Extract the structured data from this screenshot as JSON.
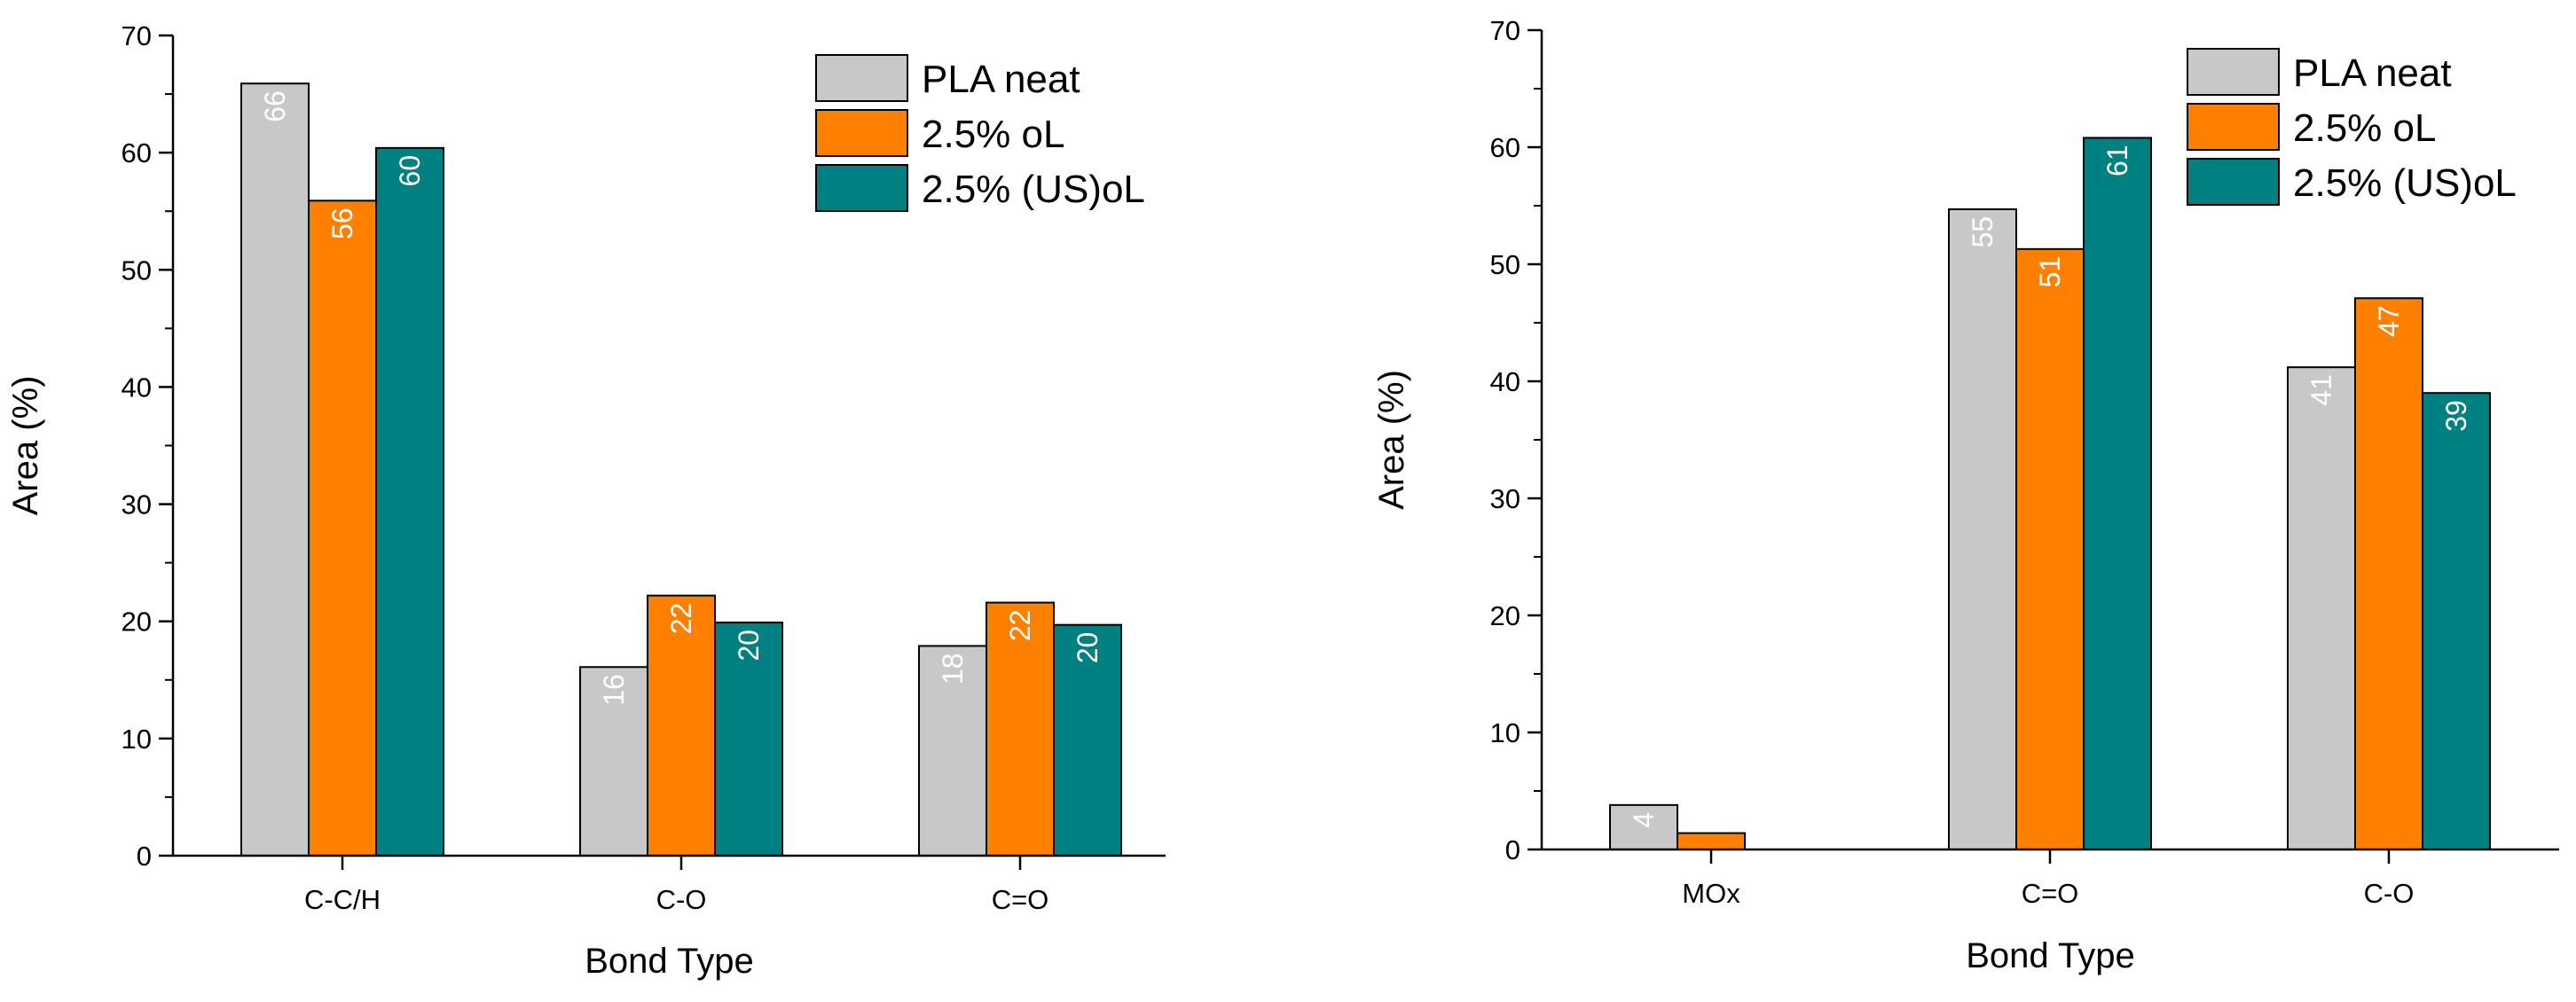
{
  "chart_data": [
    {
      "type": "bar",
      "categories": [
        "C-C/H",
        "C-O",
        "C=O"
      ],
      "series": [
        {
          "name": "PLA neat",
          "color": "#c8c8c8",
          "values": [
            65.9,
            16.1,
            17.9
          ]
        },
        {
          "name": "2.5% oL",
          "color": "#ff8000",
          "values": [
            55.9,
            22.2,
            21.6
          ]
        },
        {
          "name": "2.5% (US)oL",
          "color": "#008080",
          "values": [
            60.4,
            19.9,
            19.7
          ]
        }
      ],
      "bar_labels": [
        [
          "66",
          "56",
          "60"
        ],
        [
          "16",
          "22",
          "20"
        ],
        [
          "18",
          "22",
          "20"
        ]
      ],
      "xlabel": "Bond Type",
      "ylabel": "Area (%)",
      "ylim": [
        0,
        70
      ],
      "yticks": [
        "0",
        "10",
        "20",
        "30",
        "40",
        "50",
        "60",
        "70"
      ],
      "legend_position": "top-right"
    },
    {
      "type": "bar",
      "categories": [
        "MOx",
        "C=O",
        "C-O"
      ],
      "series": [
        {
          "name": "PLA neat",
          "color": "#c8c8c8",
          "values": [
            3.8,
            54.7,
            41.2
          ]
        },
        {
          "name": "2.5% oL",
          "color": "#ff8000",
          "values": [
            1.4,
            51.3,
            47.1
          ]
        },
        {
          "name": "2.5% (US)oL",
          "color": "#008080",
          "values": [
            0,
            60.8,
            39.0
          ]
        }
      ],
      "bar_labels": [
        [
          "4",
          "",
          ""
        ],
        [
          "55",
          "51",
          "61"
        ],
        [
          "41",
          "47",
          "39"
        ]
      ],
      "xlabel": "Bond Type",
      "ylabel": "Area (%)",
      "ylim": [
        0,
        70
      ],
      "yticks": [
        "0",
        "10",
        "20",
        "30",
        "40",
        "50",
        "60",
        "70"
      ],
      "legend_position": "top-right"
    }
  ]
}
